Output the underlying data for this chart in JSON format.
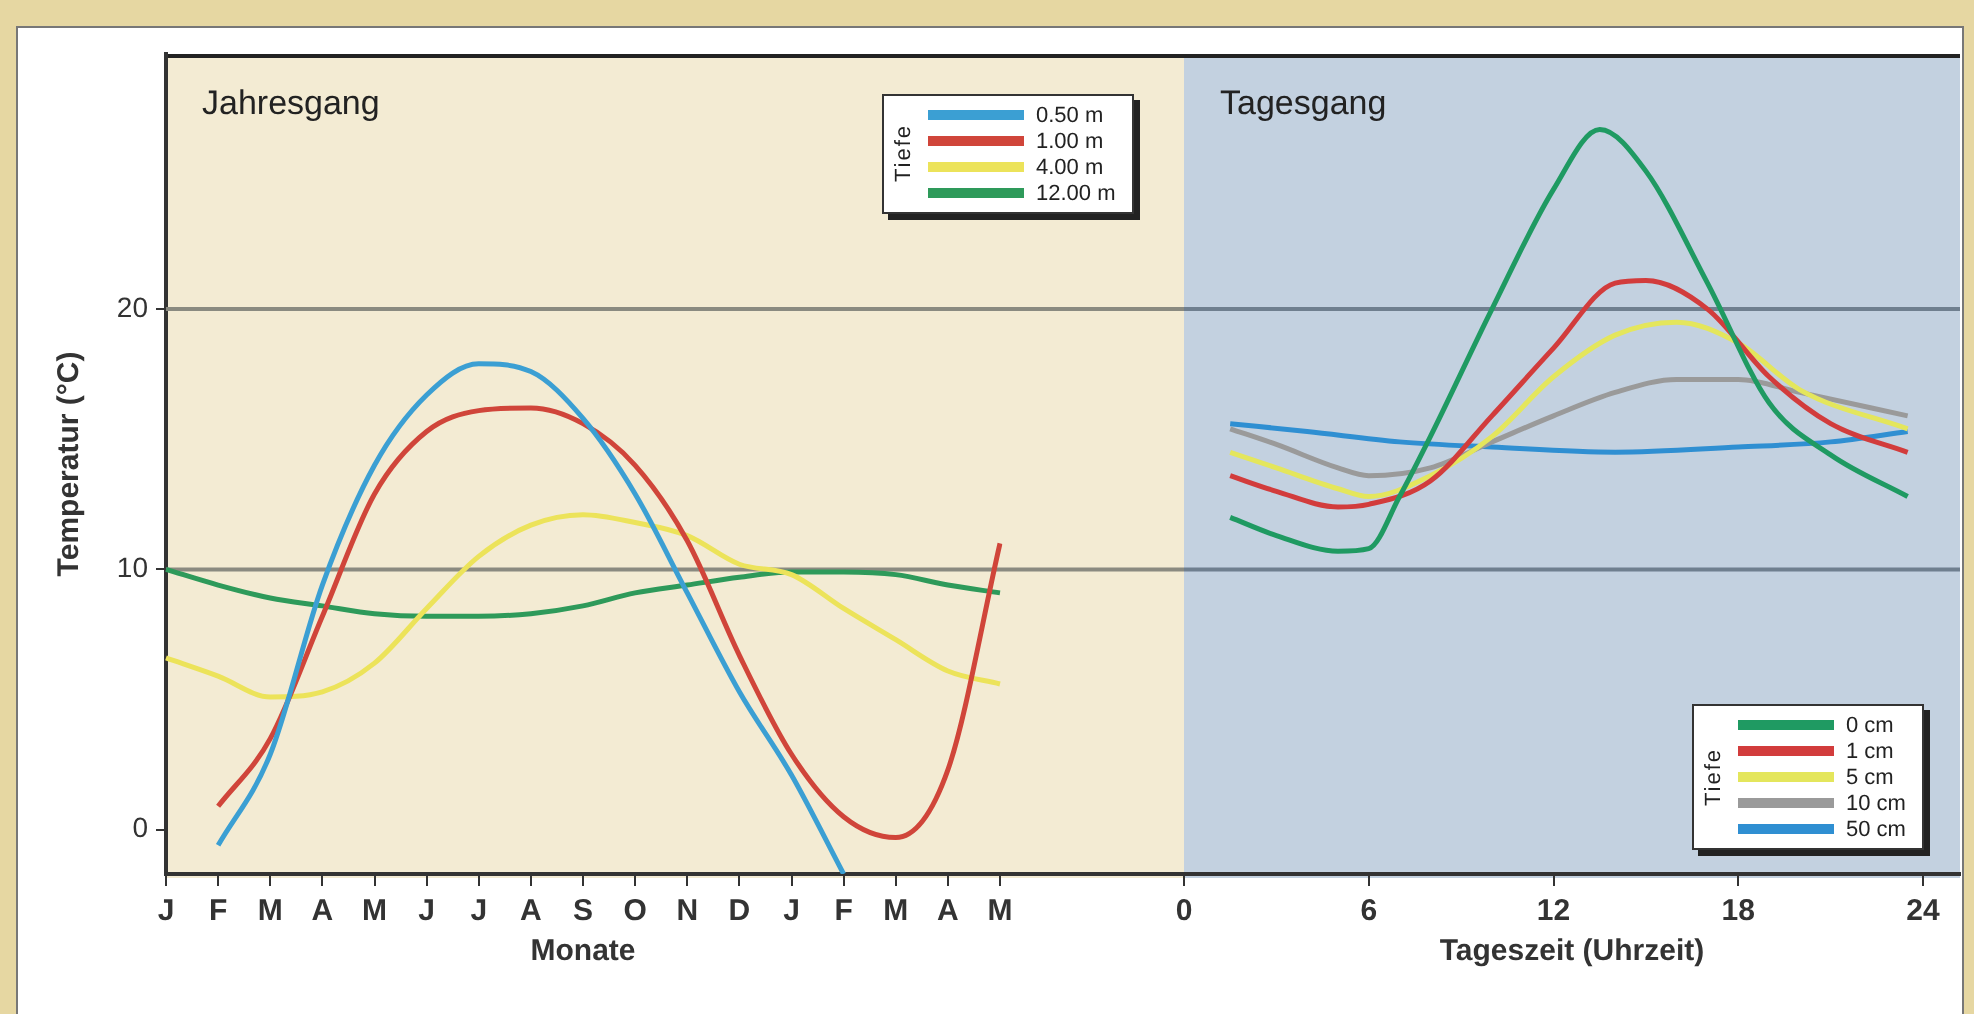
{
  "chart_data": [
    {
      "type": "line",
      "title": "Jahresgang",
      "xlabel": "Monate",
      "ylabel": "Temperatur (°C)",
      "legend": "top right",
      "legend_title": "Tiefe",
      "marker": "none",
      "line_style": "solid",
      "grid": false,
      "categories": [
        "J",
        "F",
        "M",
        "A",
        "M",
        "J",
        "J",
        "A",
        "S",
        "O",
        "N",
        "D",
        "J",
        "F",
        "M",
        "A",
        "M"
      ],
      "ylim": [
        -1.7,
        29.8
      ],
      "yticks": [
        0,
        10,
        20
      ],
      "ref_lines": [
        {
          "axis": "y",
          "value": 10,
          "color": "#8a8a80"
        },
        {
          "axis": "y",
          "value": 20,
          "color": "#8a8a80"
        }
      ],
      "series": [
        {
          "name": "0.50 m",
          "color": "#3b9fd3",
          "values": [
            null,
            -0.6,
            2.9,
            9.4,
            14.0,
            16.7,
            17.9,
            17.6,
            15.8,
            12.9,
            9.1,
            5.3,
            2.1,
            -1.7,
            null,
            null,
            null
          ]
        },
        {
          "name": "1.00 m",
          "color": "#d0453a",
          "values": [
            null,
            0.9,
            3.5,
            8.2,
            12.9,
            15.3,
            16.1,
            16.2,
            15.6,
            14.0,
            11.1,
            6.7,
            2.9,
            0.5,
            -0.3,
            2.3,
            11.0
          ]
        },
        {
          "name": "4.00 m",
          "color": "#ece35a",
          "values": [
            6.6,
            5.9,
            5.1,
            5.3,
            6.4,
            8.5,
            10.5,
            11.7,
            12.1,
            11.8,
            11.3,
            10.2,
            9.8,
            8.5,
            7.3,
            6.1,
            5.6
          ]
        },
        {
          "name": "12.00 m",
          "color": "#2e9a5a",
          "values": [
            10.0,
            9.4,
            8.9,
            8.6,
            8.3,
            8.2,
            8.2,
            8.3,
            8.6,
            9.1,
            9.4,
            9.7,
            9.9,
            9.9,
            9.8,
            9.4,
            9.1
          ]
        }
      ]
    },
    {
      "type": "line",
      "title": "Tagesgang",
      "xlabel": "Tageszeit (Uhrzeit)",
      "legend": "bottom right",
      "legend_title": "Tiefe",
      "marker": "none",
      "line_style": "solid",
      "grid": false,
      "tick_labels": "x",
      "xlim": [
        0,
        25.2
      ],
      "xticks": [
        0,
        6,
        12,
        18,
        24
      ],
      "ylim": [
        -1.7,
        29.8
      ],
      "yticks": [
        0,
        10,
        20
      ],
      "ref_lines": [
        {
          "axis": "y",
          "value": 10,
          "color": "#6f7f8f"
        },
        {
          "axis": "y",
          "value": 20,
          "color": "#6f7f8f"
        }
      ],
      "series": [
        {
          "name": "0 cm",
          "color": "#1f9a62",
          "x": [
            1.5,
            3,
            5,
            6,
            7,
            8,
            10,
            12,
            13.5,
            15,
            17,
            19,
            21,
            23.5
          ],
          "values": [
            12.0,
            11.3,
            10.7,
            10.8,
            12.8,
            15.1,
            20.0,
            24.6,
            26.9,
            25.3,
            21.0,
            16.4,
            14.4,
            12.8
          ]
        },
        {
          "name": "1 cm",
          "color": "#d23c3c",
          "x": [
            1.5,
            3,
            5,
            6,
            8,
            10,
            12,
            14,
            15,
            17,
            19,
            21,
            23.5
          ],
          "values": [
            13.6,
            13.0,
            12.4,
            12.5,
            13.4,
            15.9,
            18.5,
            21.0,
            21.1,
            20.0,
            17.4,
            15.6,
            14.5
          ]
        },
        {
          "name": "5 cm",
          "color": "#e4e65c",
          "x": [
            1.5,
            3,
            5,
            6,
            8,
            10,
            12,
            14,
            16,
            18,
            20,
            23.5
          ],
          "values": [
            14.5,
            13.9,
            13.1,
            12.8,
            13.6,
            15.1,
            17.4,
            19.0,
            19.5,
            18.7,
            16.9,
            15.4
          ]
        },
        {
          "name": "10 cm",
          "color": "#9a9a9a",
          "x": [
            1.5,
            3,
            5,
            6,
            8,
            10,
            12,
            14,
            16,
            18,
            20,
            23.5
          ],
          "values": [
            15.4,
            14.8,
            13.9,
            13.6,
            13.9,
            14.9,
            15.9,
            16.8,
            17.3,
            17.3,
            16.8,
            15.9
          ]
        },
        {
          "name": "50 cm",
          "color": "#2f8fd2",
          "x": [
            1.5,
            4,
            7,
            10,
            14,
            18,
            21,
            23.5
          ],
          "values": [
            15.6,
            15.3,
            14.9,
            14.7,
            14.5,
            14.7,
            14.9,
            15.3
          ]
        }
      ]
    }
  ]
}
